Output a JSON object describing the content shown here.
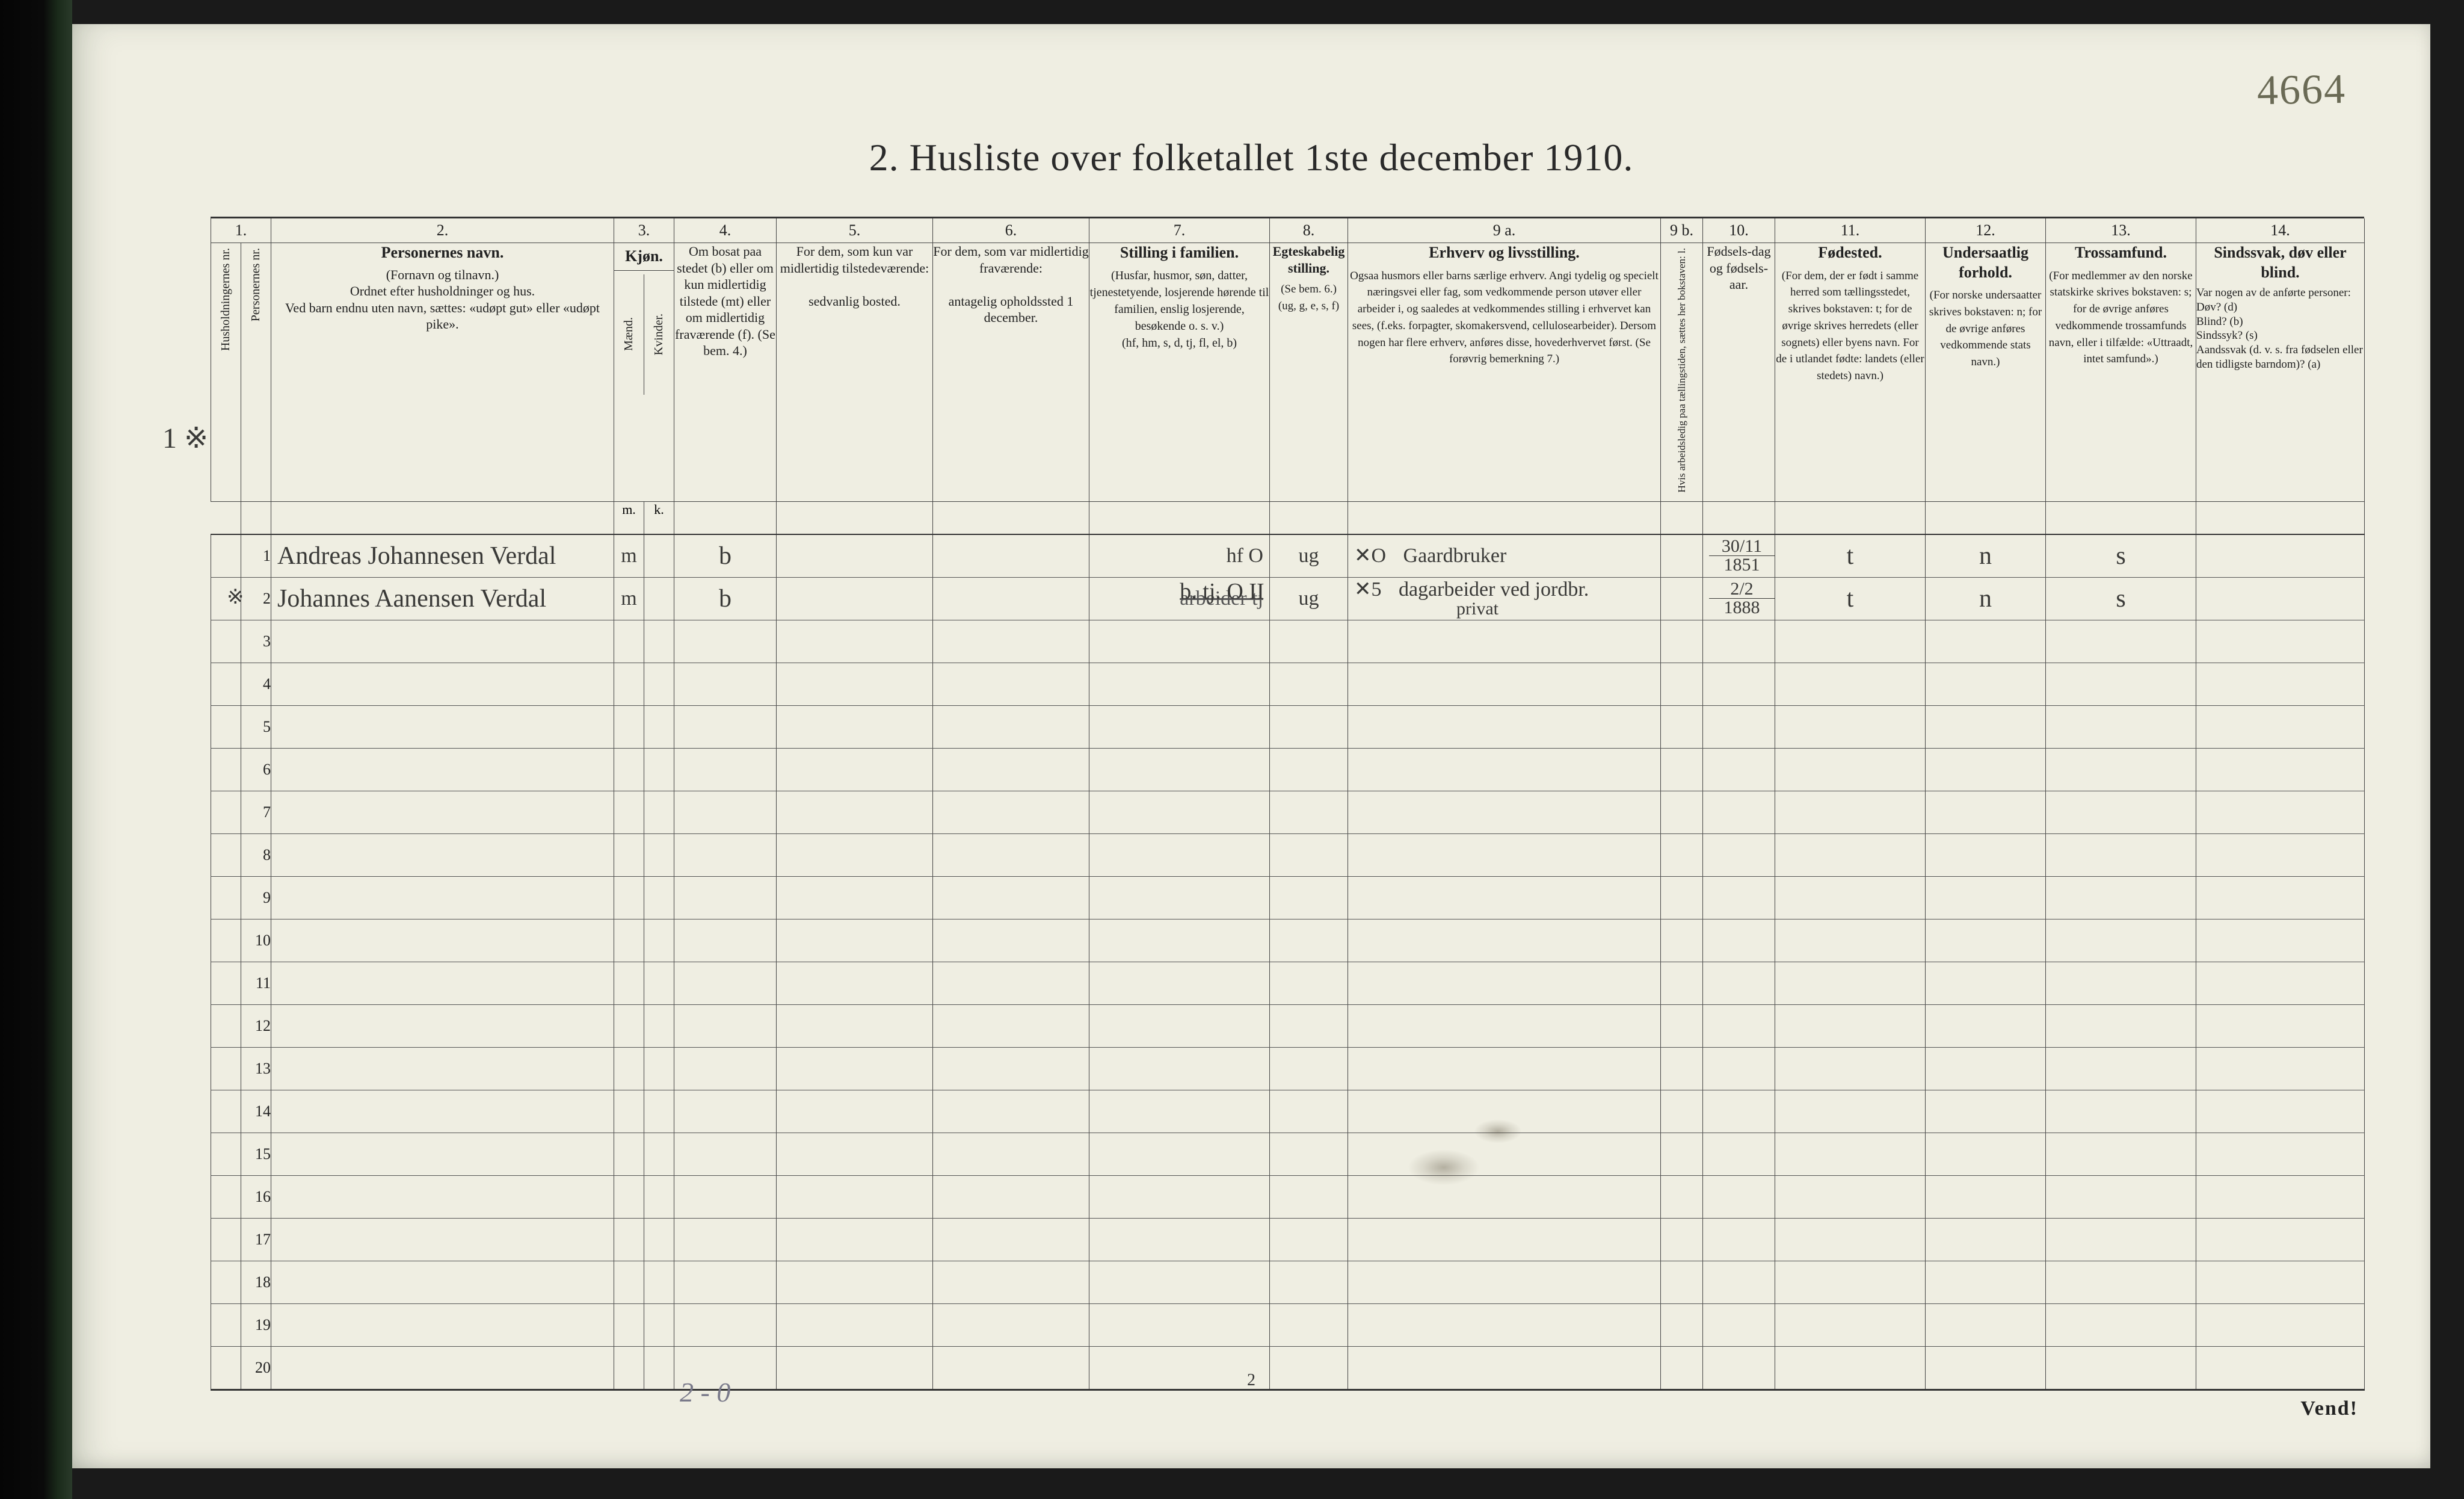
{
  "corner_note": "4664",
  "title": "2.  Husliste over folketallet 1ste december 1910.",
  "colnums": [
    "1.",
    "2.",
    "3.",
    "4.",
    "5.",
    "6.",
    "7.",
    "8.",
    "9 a.",
    "9 b.",
    "10.",
    "11.",
    "12.",
    "13.",
    "14."
  ],
  "headers": {
    "c1a": "Husholdningernes nr.",
    "c1b": "Personernes nr.",
    "c2_main": "Personernes navn.",
    "c2_sub": "(Fornavn og tilnavn.)\nOrdnet efter husholdninger og hus.\nVed barn endnu uten navn, sættes: «udøpt gut» eller «udøpt pike».",
    "c3_main": "Kjøn.",
    "c3_sub1": "Mænd.",
    "c3_sub2": "Kvinder.",
    "c3_m": "m.",
    "c3_k": "k.",
    "c4": "Om bosat paa stedet (b) eller om kun midlertidig tilstede (mt) eller om midlertidig fraværende (f). (Se bem. 4.)",
    "c5": "For dem, som kun var midlertidig tilstedeværende:",
    "c5b": "sedvanlig bosted.",
    "c6": "For dem, som var midlertidig fraværende:",
    "c6b": "antagelig opholdssted 1 december.",
    "c7_main": "Stilling i familien.",
    "c7_sub": "(Husfar, husmor, søn, datter, tjenestetyende, losjerende hørende til familien, enslig losjerende, besøkende o. s. v.)\n(hf, hm, s, d, tj, fl, el, b)",
    "c8_main": "Egteskabelig stilling.",
    "c8_sub": "(Se bem. 6.)\n(ug, g, e, s, f)",
    "c9a_main": "Erhverv og livsstilling.",
    "c9a_sub": "Ogsaa husmors eller barns særlige erhverv. Angi tydelig og specielt næringsvei eller fag, som vedkommende person utøver eller arbeider i, og saaledes at vedkommendes stilling i erhvervet kan sees, (f.eks. forpagter, skomakersvend, cellulosearbeider). Dersom nogen har flere erhverv, anføres disse, hovederhvervet først. (Se forøvrig bemerkning 7.)",
    "c9b": "Hvis arbeidsledig paa tællingstiden, sættes her bokstaven: l.",
    "c10": "Fødsels-dag og fødsels-aar.",
    "c11_main": "Fødested.",
    "c11_sub": "(For dem, der er født i samme herred som tællingsstedet, skrives bokstaven: t; for de øvrige skrives herredets (eller sognets) eller byens navn. For de i utlandet fødte: landets (eller stedets) navn.)",
    "c12_main": "Undersaatlig forhold.",
    "c12_sub": "(For norske undersaatter skrives bokstaven: n; for de øvrige anføres vedkommende stats navn.)",
    "c13_main": "Trossamfund.",
    "c13_sub": "(For medlemmer av den norske statskirke skrives bokstaven: s; for de øvrige anføres vedkommende trossamfunds navn, eller i tilfælde: «Uttraadt, intet samfund».)",
    "c14_main": "Sindssvak, døv eller blind.",
    "c14_sub": "Var nogen av de anførte personer:\nDøv?        (d)\nBlind?       (b)\nSindssyk?  (s)\nAandssvak (d. v. s. fra fødselen eller den tidligste barndom)?  (a)"
  },
  "margin_mark": "1 ※",
  "rows": [
    {
      "hnr": "",
      "pnr": "1",
      "name": "Andreas Johannesen Verdal",
      "sex": "m",
      "bosat": "b",
      "c5": "",
      "c6": "",
      "famstill_over": "hf",
      "famstill_note": "O",
      "egte": "ug",
      "erhverv_pre": "✕O",
      "erhverv": "Gaardbruker",
      "dob_num": "30/11",
      "dob_den": "1851",
      "fodested": "t",
      "stat": "n",
      "tros": "s",
      "c14": ""
    },
    {
      "hnr": "",
      "pnr": "2",
      "pnr_prefix": "※",
      "name": "Johannes Aanensen Verdal",
      "sex": "m",
      "bosat": "b",
      "c5": "",
      "c6": "",
      "famstill_under": "arbeider   tj",
      "famstill_over": "b. tj.  O II",
      "egte": "ug",
      "erhverv_pre": "✕5",
      "erhverv": "dagarbeider ved jordbr.",
      "erhverv2": "privat",
      "dob_num": "2/2",
      "dob_den": "1888",
      "fodested": "t",
      "stat": "n",
      "tros": "s",
      "c14": ""
    }
  ],
  "row_numbers": [
    "1",
    "2",
    "3",
    "4",
    "5",
    "6",
    "7",
    "8",
    "9",
    "10",
    "11",
    "12",
    "13",
    "14",
    "15",
    "16",
    "17",
    "18",
    "19",
    "20"
  ],
  "foot_page": "2",
  "pencil_note": "2 - 0",
  "vend": "Vend!",
  "colors": {
    "paper": "#efeee2",
    "ink": "#2a2a2a",
    "rule": "#444444",
    "handwriting": "#3a3a38",
    "pencil": "#7a7a8a",
    "corner": "#6a6a55"
  }
}
